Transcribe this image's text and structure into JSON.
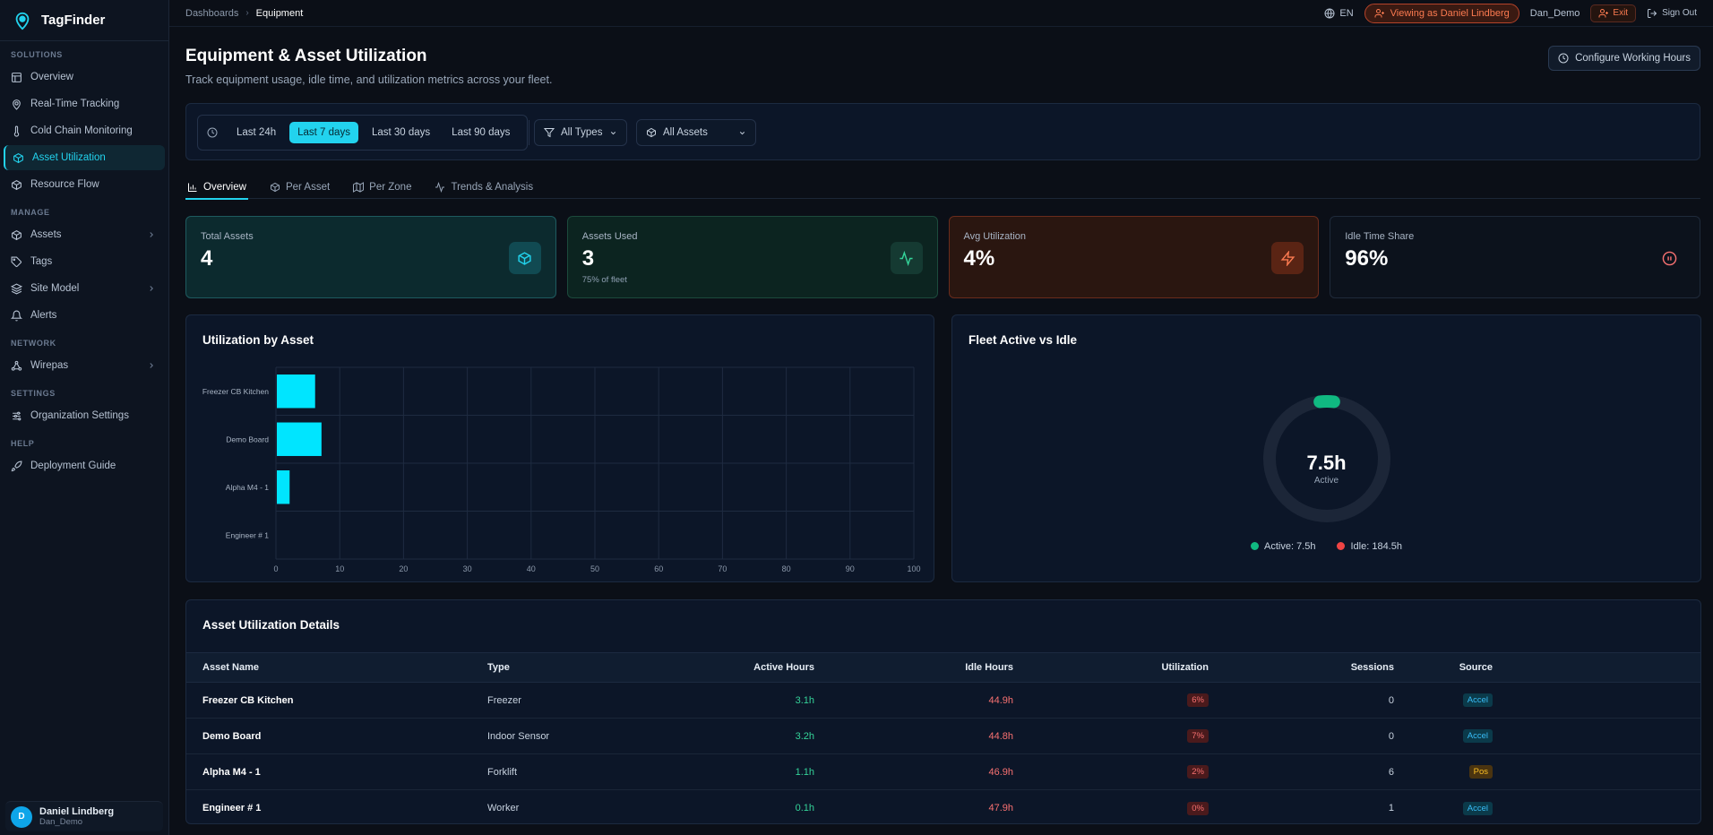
{
  "app": {
    "name": "TagFinder"
  },
  "sidebar": {
    "sections": [
      {
        "label": "SOLUTIONS",
        "items": [
          {
            "label": "Overview",
            "icon": "layout-icon"
          },
          {
            "label": "Real-Time Tracking",
            "icon": "map-pin-icon"
          },
          {
            "label": "Cold Chain Monitoring",
            "icon": "thermometer-icon"
          },
          {
            "label": "Asset Utilization",
            "icon": "box-icon",
            "active": true
          },
          {
            "label": "Resource Flow",
            "icon": "box-icon"
          }
        ]
      },
      {
        "label": "MANAGE",
        "items": [
          {
            "label": "Assets",
            "icon": "box-icon",
            "chevron": true
          },
          {
            "label": "Tags",
            "icon": "tag-icon"
          },
          {
            "label": "Site Model",
            "icon": "layers-icon",
            "chevron": true
          },
          {
            "label": "Alerts",
            "icon": "bell-icon"
          }
        ]
      },
      {
        "label": "NETWORK",
        "items": [
          {
            "label": "Wirepas",
            "icon": "network-icon",
            "chevron": true
          }
        ]
      },
      {
        "label": "SETTINGS",
        "items": [
          {
            "label": "Organization Settings",
            "icon": "sliders-icon"
          }
        ]
      },
      {
        "label": "HELP",
        "items": [
          {
            "label": "Deployment Guide",
            "icon": "rocket-icon"
          }
        ]
      }
    ],
    "user": {
      "initial": "D",
      "name": "Daniel Lindberg",
      "handle": "Dan_Demo"
    }
  },
  "topbar": {
    "breadcrumb": [
      "Dashboards",
      "Equipment"
    ],
    "language": "EN",
    "viewing_as": "Viewing as Daniel Lindberg",
    "username": "Dan_Demo",
    "exit_label": "Exit",
    "signout_label": "Sign Out"
  },
  "page": {
    "title": "Equipment & Asset Utilization",
    "subtitle": "Track equipment usage, idle time, and utilization metrics across your fleet.",
    "configure_label": "Configure Working Hours"
  },
  "filters": {
    "ranges": [
      "Last 24h",
      "Last 7 days",
      "Last 30 days",
      "Last 90 days"
    ],
    "selected_range": "Last 7 days",
    "type_select": "All Types",
    "asset_select": "All Assets"
  },
  "tabs": [
    "Overview",
    "Per Asset",
    "Per Zone",
    "Trends & Analysis"
  ],
  "kpis": [
    {
      "label": "Total Assets",
      "value": "4",
      "sub": "",
      "icon": "cube-icon"
    },
    {
      "label": "Assets Used",
      "value": "3",
      "sub": "75% of fleet",
      "icon": "activity-icon"
    },
    {
      "label": "Avg Utilization",
      "value": "4%",
      "sub": "",
      "icon": "zap-icon"
    },
    {
      "label": "Idle Time Share",
      "value": "96%",
      "sub": "",
      "icon": "pause-icon"
    }
  ],
  "utilization_chart": {
    "title": "Utilization by Asset"
  },
  "fleet_chart": {
    "title": "Fleet Active vs Idle",
    "center_value": "7.5h",
    "center_label": "Active",
    "legend": [
      "Active: 7.5h",
      "Idle: 184.5h"
    ]
  },
  "chart_data": [
    {
      "type": "bar",
      "orientation": "horizontal",
      "title": "Utilization by Asset",
      "categories": [
        "Freezer CB Kitchen",
        "Demo Board",
        "Alpha M4 - 1",
        "Engineer # 1"
      ],
      "values": [
        6,
        7,
        2,
        0
      ],
      "xlim": [
        0,
        100
      ],
      "xticks": [
        "0",
        "10",
        "20",
        "30",
        "40",
        "50",
        "60",
        "70",
        "80",
        "90",
        "100"
      ],
      "grid": true,
      "color": "#00e5ff"
    },
    {
      "type": "pie",
      "title": "Fleet Active vs Idle",
      "labels": [
        "Active",
        "Idle"
      ],
      "values": [
        7.5,
        184.5
      ],
      "colors": [
        "#10b981",
        "#1c2638"
      ]
    }
  ],
  "details_table": {
    "title": "Asset Utilization Details",
    "columns": [
      "Asset Name",
      "Type",
      "Active Hours",
      "Idle Hours",
      "Utilization",
      "Sessions",
      "Source"
    ],
    "rows": [
      {
        "name": "Freezer CB Kitchen",
        "type": "Freezer",
        "active": "3.1h",
        "idle": "44.9h",
        "util": "6%",
        "sessions": "0",
        "source": "Accel"
      },
      {
        "name": "Demo Board",
        "type": "Indoor Sensor",
        "active": "3.2h",
        "idle": "44.8h",
        "util": "7%",
        "sessions": "0",
        "source": "Accel"
      },
      {
        "name": "Alpha M4 - 1",
        "type": "Forklift",
        "active": "1.1h",
        "idle": "46.9h",
        "util": "2%",
        "sessions": "6",
        "source": "Pos"
      },
      {
        "name": "Engineer # 1",
        "type": "Worker",
        "active": "0.1h",
        "idle": "47.9h",
        "util": "0%",
        "sessions": "1",
        "source": "Accel"
      }
    ]
  }
}
